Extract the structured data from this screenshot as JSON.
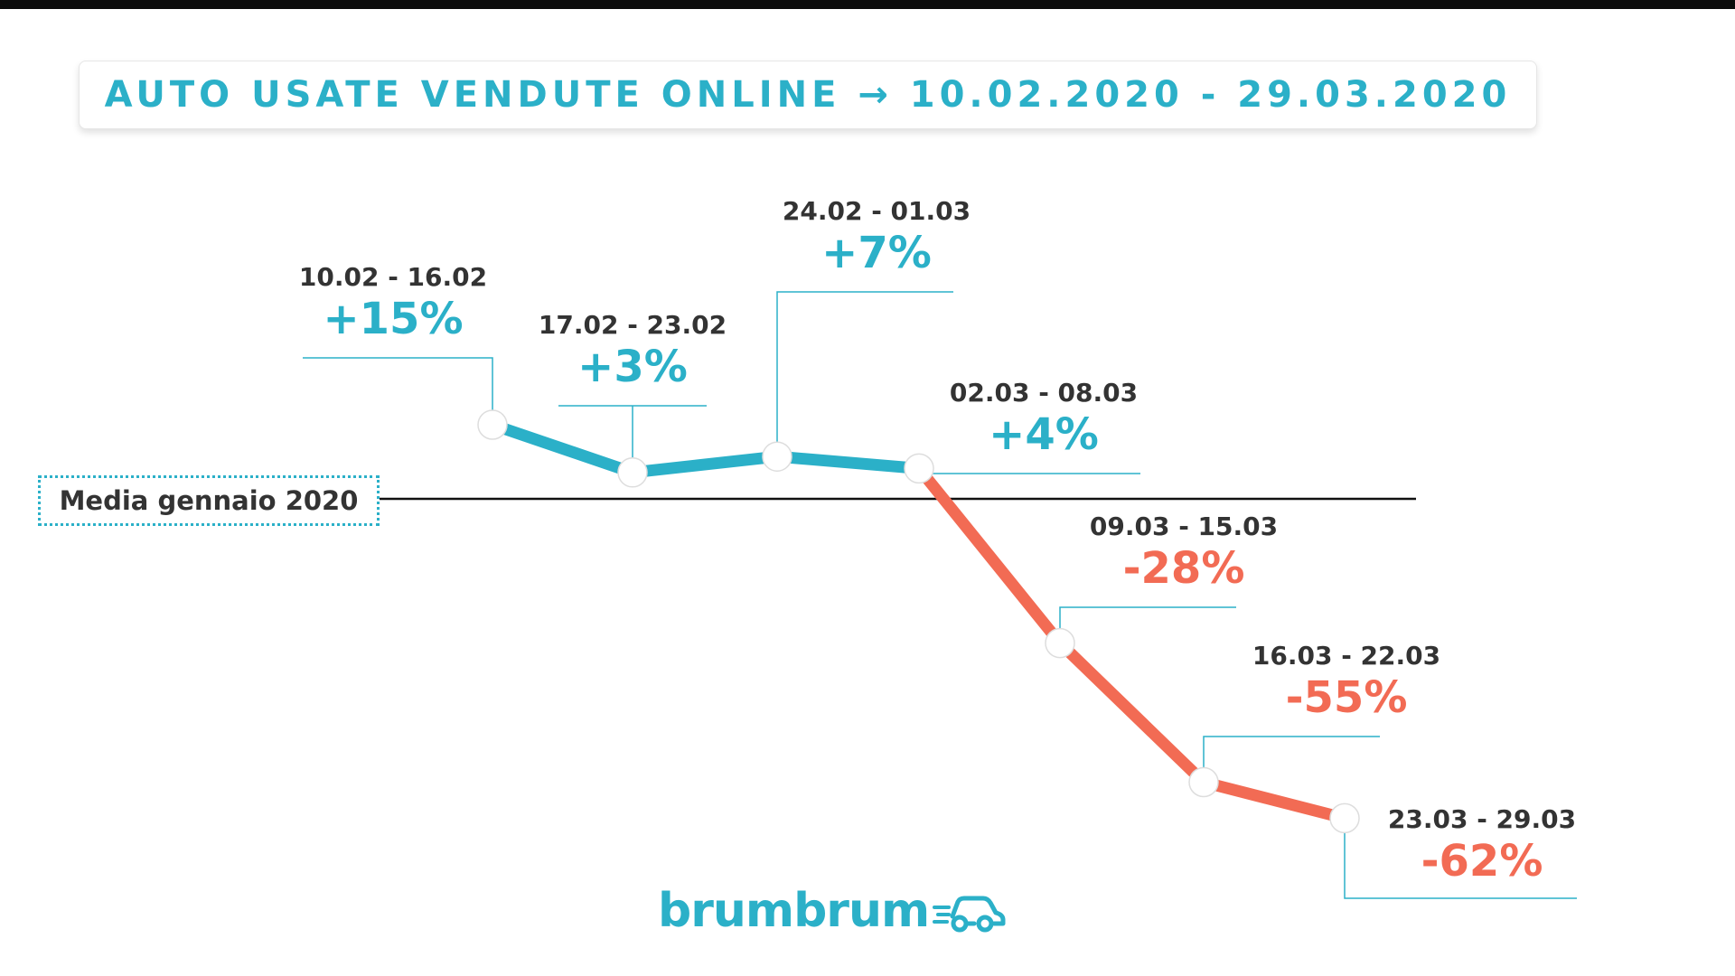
{
  "title": "AUTO USATE VENDUTE ONLINE → 10.02.2020 - 29.03.2020",
  "baseline_label": "Media gennaio 2020",
  "logo_text": "brumbrum",
  "colors": {
    "positive": "#2bb0c8",
    "negative": "#f26b54",
    "text": "#333333",
    "baseline": "#111111"
  },
  "chart_data": {
    "type": "line",
    "categories": [
      "10.02 - 16.02",
      "17.02 - 23.02",
      "24.02 - 01.03",
      "02.03 - 08.03",
      "09.03 - 15.03",
      "16.03 - 22.03",
      "23.03 - 29.03"
    ],
    "values": [
      15,
      3,
      7,
      4,
      -28,
      -55,
      -62
    ],
    "value_labels": [
      "+15%",
      "+3%",
      "+7%",
      "+4%",
      "-28%",
      "-55%",
      "-62%"
    ],
    "baseline": 0,
    "ylim": [
      -70,
      20
    ],
    "grid": false,
    "legend": "none"
  }
}
